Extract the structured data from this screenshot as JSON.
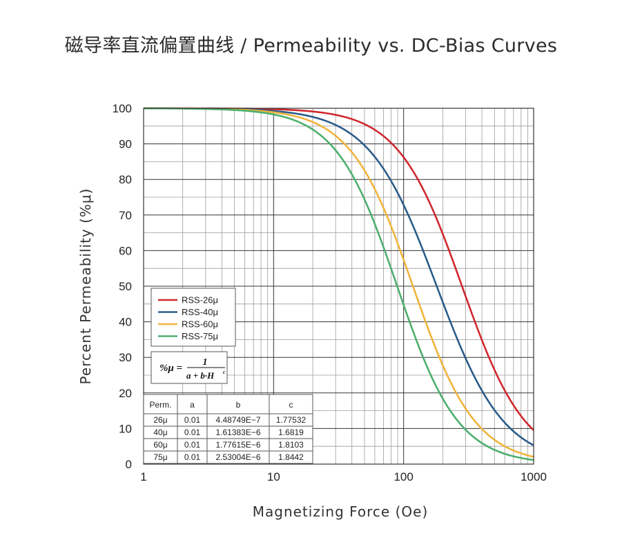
{
  "title": "磁导率直流偏置曲线 / Permeability vs. DC-Bias Curves",
  "chart_data": {
    "type": "line",
    "xscale": "log",
    "xlim": [
      1,
      1000
    ],
    "ylim": [
      0,
      100
    ],
    "xlabel": "Magnetizing Force (Oe)",
    "ylabel": "Percent Permeability (%μ)",
    "xticks": [
      "1",
      "10",
      "100",
      "1000"
    ],
    "yticks": [
      "0",
      "10",
      "20",
      "30",
      "40",
      "50",
      "60",
      "70",
      "80",
      "90",
      "100"
    ],
    "grid": true,
    "legend_position": "lower-left",
    "series": [
      {
        "name": "RSS-26μ",
        "color": "#d0282e",
        "a": 0.01,
        "b": 4.48749e-07,
        "c": 1.77532,
        "x": [
          1,
          10,
          20,
          30,
          50,
          70,
          100,
          150,
          200,
          300,
          500,
          700,
          1000
        ],
        "y": [
          100,
          99.6,
          98.6,
          97.1,
          93.3,
          88.5,
          80.5,
          67.9,
          57.0,
          40.8,
          23.5,
          15.5,
          9.8
        ]
      },
      {
        "name": "RSS-40μ",
        "color": "#2b5c8a",
        "a": 0.01,
        "b": 1.61383e-06,
        "c": 1.6819,
        "x": [
          1,
          10,
          20,
          30,
          50,
          70,
          100,
          150,
          200,
          300,
          500,
          700,
          1000
        ],
        "y": [
          100,
          99.2,
          97.4,
          94.9,
          88.7,
          81.5,
          71.1,
          55.8,
          44.4,
          30.0,
          16.3,
          10.8,
          6.7
        ]
      },
      {
        "name": "RSS-60μ",
        "color": "#f0b43c",
        "a": 0.01,
        "b": 1.77615e-06,
        "c": 1.8103,
        "x": [
          1,
          10,
          20,
          30,
          50,
          70,
          100,
          150,
          200,
          300,
          500,
          700,
          1000
        ],
        "y": [
          100,
          98.9,
          96.3,
          92.7,
          83.7,
          73.4,
          59.1,
          40.8,
          29.4,
          17.1,
          7.5,
          4.3,
          2.4
        ]
      },
      {
        "name": "RSS-75μ",
        "color": "#4daf6e",
        "a": 0.01,
        "b": 2.53004e-06,
        "c": 1.8442,
        "x": [
          1,
          10,
          20,
          30,
          50,
          70,
          100,
          150,
          200,
          300,
          500,
          700,
          1000
        ],
        "y": [
          100,
          98.3,
          94.4,
          88.8,
          75.7,
          62.6,
          46.6,
          29.5,
          20.2,
          10.8,
          4.6,
          2.5,
          1.4
        ]
      }
    ],
    "formula": {
      "lhs": "%μ =",
      "numerator": "1",
      "denominator": "a + b·H",
      "exponent": "c"
    },
    "table": {
      "headers": [
        "Perm.",
        "a",
        "b",
        "c"
      ],
      "rows": [
        [
          "26μ",
          "0.01",
          "4.48749E−7",
          "1.77532"
        ],
        [
          "40μ",
          "0.01",
          "1.61383E−6",
          "1.6819"
        ],
        [
          "60μ",
          "0.01",
          "1.77615E−6",
          "1.8103"
        ],
        [
          "75μ",
          "0.01",
          "2.53004E−6",
          "1.8442"
        ]
      ]
    }
  }
}
